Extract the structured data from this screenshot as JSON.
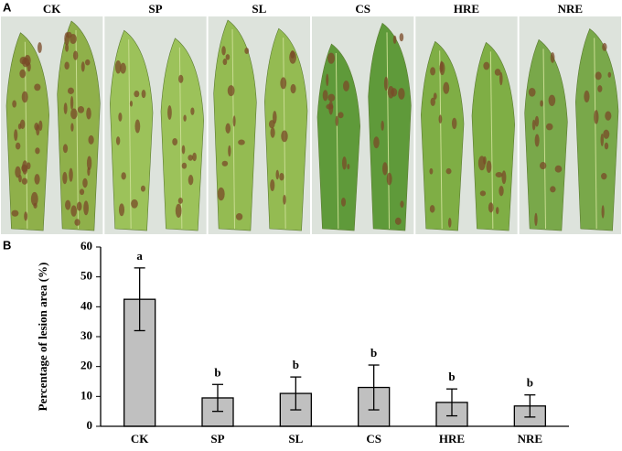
{
  "panel_labels": [
    "A",
    "B"
  ],
  "chart_data": {
    "type": "bar",
    "y_label": "Percentage of lesion area (%)",
    "categories": [
      "CK",
      "SP",
      "SL",
      "CS",
      "HRE",
      "NRE"
    ],
    "values": [
      42.5,
      9.5,
      11,
      13,
      8,
      6.8
    ],
    "errors": [
      10.5,
      4.5,
      5.5,
      7.5,
      4.5,
      3.7
    ],
    "annotations": [
      "a",
      "b",
      "b",
      "b",
      "b",
      "b"
    ],
    "color": "#c0c0c0",
    "ylim": [
      0,
      60
    ],
    "yticks": [
      0,
      10,
      20,
      30,
      40,
      50,
      60
    ]
  }
}
